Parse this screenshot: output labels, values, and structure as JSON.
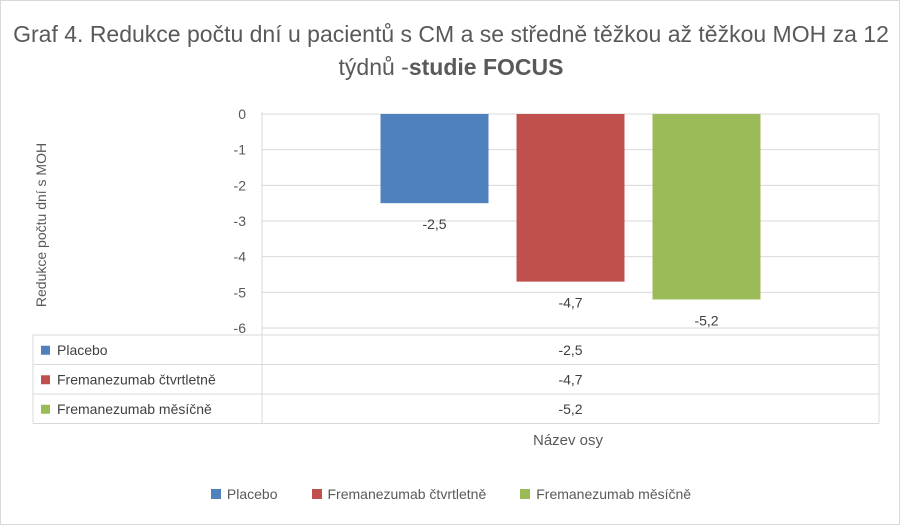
{
  "chart_data": {
    "type": "bar",
    "title_normal": "Graf 4. Redukce počtu dní u pacientů s CM a se středně těžkou až těžkou MOH za 12 týdnů -",
    "title_bold": "studie FOCUS",
    "ylabel": "Redukce počtu dní s MOH",
    "xlabel": "Název osy",
    "ylim": [
      -6,
      0
    ],
    "yticks": [
      0,
      -1,
      -2,
      -3,
      -4,
      -5,
      -6
    ],
    "grid": true,
    "legend_position": "bottom",
    "series": [
      {
        "name": "Placebo",
        "values": [
          -2.5
        ],
        "label": "-2,5",
        "color": "#4f81bd"
      },
      {
        "name": "Fremanezumab čtvrtletně",
        "values": [
          -4.7
        ],
        "label": "-4,7",
        "color": "#c0504d"
      },
      {
        "name": "Fremanezumab měsíčně",
        "values": [
          -5.2
        ],
        "label": "-5,2",
        "color": "#9bbb59"
      }
    ]
  }
}
